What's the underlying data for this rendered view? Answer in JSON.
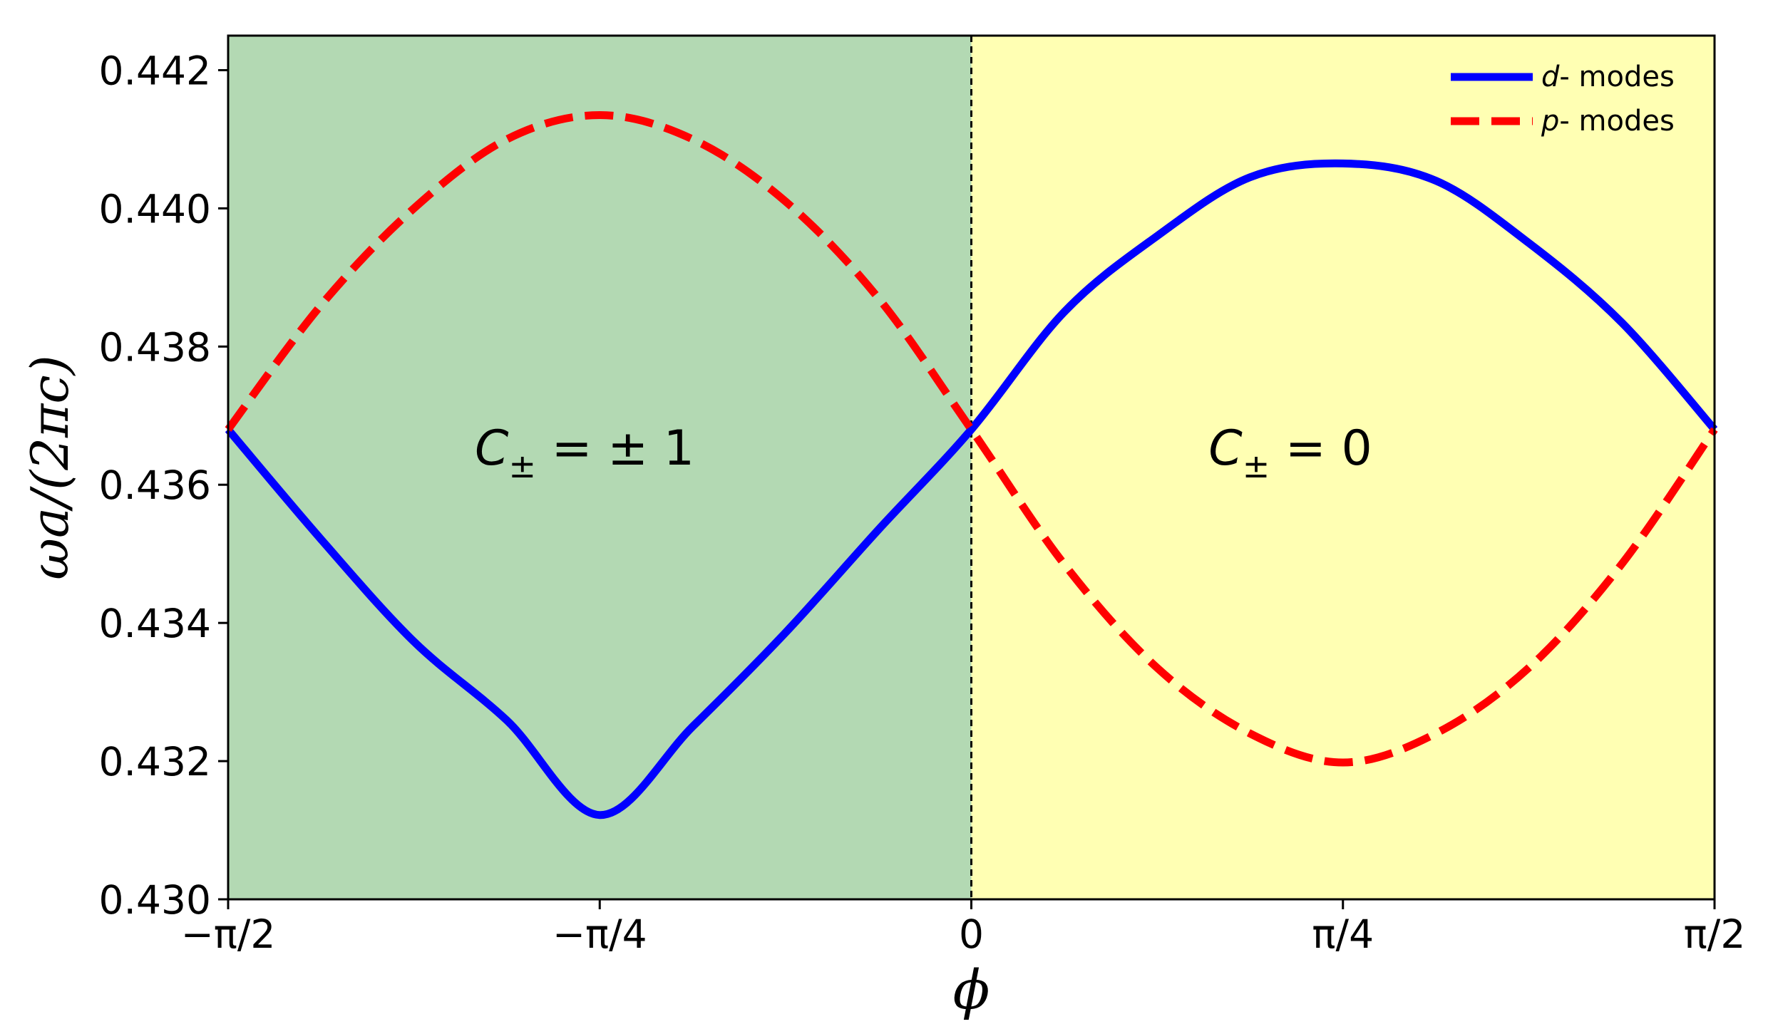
{
  "chart_data": {
    "type": "line",
    "xlabel": "ϕ",
    "ylabel": "ωa/(2πc)",
    "xlim": [
      -1.5708,
      1.5708
    ],
    "ylim": [
      0.43,
      0.4425
    ],
    "x_ticks": [
      {
        "value": -1.5708,
        "label": "−π/2"
      },
      {
        "value": -0.7854,
        "label": "−π/4"
      },
      {
        "value": 0,
        "label": "0"
      },
      {
        "value": 0.7854,
        "label": "π/4"
      },
      {
        "value": 1.5708,
        "label": "π/2"
      }
    ],
    "y_ticks": [
      {
        "value": 0.43,
        "label": "0.430"
      },
      {
        "value": 0.432,
        "label": "0.432"
      },
      {
        "value": 0.434,
        "label": "0.434"
      },
      {
        "value": 0.436,
        "label": "0.436"
      },
      {
        "value": 0.438,
        "label": "0.438"
      },
      {
        "value": 0.44,
        "label": "0.440"
      },
      {
        "value": 0.442,
        "label": "0.442"
      }
    ],
    "regions": [
      {
        "x_range": [
          -1.5708,
          0
        ],
        "color": "#b3d9b3",
        "label_main": "C",
        "label_sub": "±",
        "label_rest": " = ± 1"
      },
      {
        "x_range": [
          0,
          1.5708
        ],
        "color": "#ffffb3",
        "label_main": "C",
        "label_sub": "±",
        "label_rest": " = 0"
      }
    ],
    "divider_x": 0,
    "grid": false,
    "legend_position": "top-right",
    "series": [
      {
        "name": "d- modes",
        "name_italic": "d",
        "name_rest": "- modes",
        "color": "#0000ff",
        "style": "solid",
        "x": [
          -1.5708,
          -1.3744,
          -1.1781,
          -0.9817,
          -0.7854,
          -0.589,
          -0.3927,
          -0.1963,
          0,
          0.1963,
          0.3927,
          0.589,
          0.7854,
          0.9817,
          1.1781,
          1.3744,
          1.5708
        ],
        "y": [
          0.4368,
          0.43521,
          0.43373,
          0.43259,
          0.43122,
          0.4325,
          0.43386,
          0.43535,
          0.4368,
          0.4385,
          0.4396,
          0.44045,
          0.44065,
          0.4404,
          0.4395,
          0.43835,
          0.4368
        ]
      },
      {
        "name": "p- modes",
        "name_italic": "p",
        "name_rest": "- modes",
        "color": "#ff0000",
        "style": "dashed",
        "x": [
          -1.5708,
          -1.3744,
          -1.1781,
          -0.9817,
          -0.7854,
          -0.589,
          -0.3927,
          -0.1963,
          0,
          0.1963,
          0.3927,
          0.589,
          0.7854,
          0.9817,
          1.1781,
          1.3744,
          1.5708
        ],
        "y": [
          0.4368,
          0.4386,
          0.44,
          0.441,
          0.44135,
          0.441,
          0.4401,
          0.4387,
          0.4368,
          0.43485,
          0.43335,
          0.4324,
          0.43198,
          0.4324,
          0.43335,
          0.43485,
          0.4368
        ]
      }
    ]
  }
}
